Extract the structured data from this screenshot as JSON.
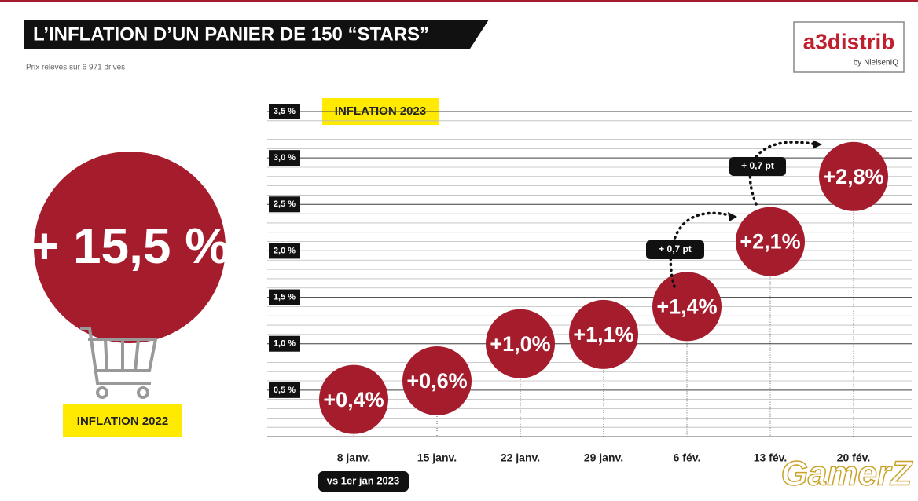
{
  "chart_data": {
    "type": "bubble-steps",
    "title": "L’INFLATION D’UN PANIER DE 150 “STARS”",
    "subtitle": "Prix relevés sur 6 971 drives",
    "logo": {
      "name": "a3distrib",
      "tagline": "by NielsenIQ"
    },
    "legend_label": "INFLATION 2023",
    "categories": [
      "8 janv.",
      "15 janv.",
      "22 janv.",
      "29 janv.",
      "6 fév.",
      "13 fév.",
      "20 fév."
    ],
    "values": [
      0.4,
      0.6,
      1.0,
      1.1,
      1.4,
      2.1,
      2.8
    ],
    "value_labels": [
      "+0,4%",
      "+0,6%",
      "+1,0%",
      "+1,1%",
      "+1,4%",
      "+2,1%",
      "+2,8%"
    ],
    "color": "#a51d2d",
    "ylim": [
      0,
      3.5
    ],
    "yticks": [
      {
        "value": 0.5,
        "label": "0,5 %"
      },
      {
        "value": 1.0,
        "label": "1,0 %"
      },
      {
        "value": 1.5,
        "label": "1,5 %"
      },
      {
        "value": 2.0,
        "label": "2,0 %"
      },
      {
        "value": 2.5,
        "label": "2,5 %"
      },
      {
        "value": 3.0,
        "label": "3,0 %"
      },
      {
        "value": 3.5,
        "label": "3,5 %"
      }
    ],
    "grid": true,
    "baseline_note": "vs 1er jan 2023",
    "annotations": [
      "+ 0,7 pt",
      "+ 0,7 pt"
    ],
    "inflation_2022": {
      "label": "INFLATION 2022",
      "value_label": "+ 15,5 %"
    },
    "watermark": "GamerZ"
  }
}
